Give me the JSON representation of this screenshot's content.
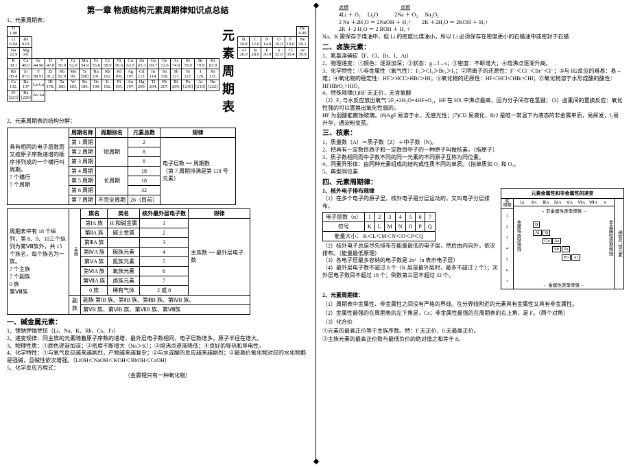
{
  "left": {
    "chapter_title": "第一章  物质结构元素周期律知识点总结",
    "s1": "1、元素周期表：",
    "pt_title": "元素周期表",
    "pt_left": {
      "r1": [
        [
          "H",
          "1.00"
        ]
      ],
      "r2": [
        [
          "Li",
          "6.94"
        ],
        [
          "Be",
          "9.01"
        ]
      ],
      "r3": [
        [
          "Na",
          "22.9"
        ],
        [
          "Mg",
          "24."
        ]
      ],
      "r4": [
        [
          "K",
          "39.1"
        ],
        [
          "Ca",
          "40.0"
        ],
        [
          "Sc",
          "44.96"
        ],
        [
          "Ti",
          "47.8"
        ],
        [
          "V",
          "50.9"
        ],
        [
          "Cr",
          "52.0"
        ],
        [
          "Mn",
          "54.9"
        ],
        [
          "Fe",
          "55.8"
        ],
        [
          "Co",
          "58.9"
        ],
        [
          "Ni",
          "58.6"
        ],
        [
          "Cu",
          "63.5"
        ],
        [
          "Zn",
          "65.3"
        ],
        [
          "Ga",
          "69.7"
        ],
        [
          "Ge",
          "72.6"
        ],
        [
          "As",
          "74.9"
        ],
        [
          "Se",
          "78.9"
        ],
        [
          "Br",
          "79.9"
        ],
        [
          "Kr",
          "83.8"
        ]
      ],
      "r5": [
        [
          "Rb",
          "85.4"
        ],
        [
          "Sr",
          "87.6"
        ],
        [
          "Y",
          "88.91"
        ],
        [
          "Zr",
          "91.2"
        ],
        [
          "Nb",
          "92.9"
        ],
        [
          "Mo",
          "95."
        ],
        [
          "Tc",
          "[98]"
        ],
        [
          "Ru",
          "101."
        ],
        [
          "Rh",
          "102."
        ],
        [
          "Pd",
          "106."
        ],
        [
          "Ag",
          "107."
        ],
        [
          "Cd",
          "112."
        ],
        [
          "In",
          "114."
        ],
        [
          "Sn",
          "118."
        ],
        [
          "Sb",
          "121."
        ],
        [
          "Te",
          "127."
        ],
        [
          "I",
          "126."
        ],
        [
          "Xe",
          "131."
        ]
      ],
      "r6": [
        [
          "Cs",
          "132."
        ],
        [
          "Ba",
          "137"
        ],
        [
          "La-Lu",
          ""
        ],
        [
          "Hf",
          "178."
        ],
        [
          "Ta",
          "180."
        ],
        [
          "W",
          "183."
        ],
        [
          "Re",
          "186."
        ],
        [
          "Os",
          "190."
        ],
        [
          "Ir",
          "192."
        ],
        [
          "Pt",
          "195."
        ],
        [
          "Au",
          "197."
        ],
        [
          "Hg",
          "200."
        ],
        [
          "Tl",
          "204."
        ],
        [
          "Pb",
          "207."
        ],
        [
          "Bi",
          "209."
        ],
        [
          "Po",
          "[210]"
        ],
        [
          "At",
          "[210]"
        ],
        [
          "Rn",
          "[222]"
        ]
      ],
      "r7": [
        [
          "Fr",
          "[223]"
        ],
        [
          "Ra",
          "[226]"
        ],
        [
          "Ac-La",
          ""
        ]
      ]
    },
    "pt_right": {
      "r1": [
        [
          "He",
          "4.00"
        ]
      ],
      "r2": [
        [
          "B",
          "10.8"
        ],
        [
          "C",
          "12.0"
        ],
        [
          "N",
          "14.0"
        ],
        [
          "O",
          "16.0"
        ],
        [
          "F",
          "19.0"
        ],
        [
          "Ne",
          "20.1"
        ]
      ],
      "r3": [
        [
          "Al",
          "26.9"
        ],
        [
          "Si",
          "28.0"
        ],
        [
          "P",
          "30.9"
        ],
        [
          "S",
          "32.0"
        ],
        [
          "Cl",
          "35.4"
        ],
        [
          "Ar",
          "39.9"
        ]
      ]
    },
    "s2": "2、元素周期表的结构分解：",
    "t1": {
      "head": [
        "周期名称",
        "周期别名",
        "元素总数",
        "规律"
      ],
      "left_desc": "具有相同的电子层数而又按原子序数递增的顺序排列成的一个横行叫周期。\n7 个横行\n7 个周期",
      "rows": [
        [
          "第 1 周期",
          "短周期",
          "2",
          "电子层数 == 周期数\n（第 7 周期排满是第 118 号元素）"
        ],
        [
          "第 2 周期",
          "",
          "8",
          ""
        ],
        [
          "第 3 周期",
          "",
          "8",
          ""
        ],
        [
          "第 4 周期",
          "长周期",
          "18",
          ""
        ],
        [
          "第 5 周期",
          "",
          "18",
          ""
        ],
        [
          "第 6 周期",
          "",
          "32",
          ""
        ],
        [
          "第 7 周期",
          "不完全周期",
          "26（目前）",
          ""
        ]
      ]
    },
    "t2": {
      "head": [
        "族名",
        "类名",
        "核外最外层电子数",
        "规律"
      ],
      "left_desc": "周期表中有 18 个纵列，第 8、9、10三个纵列为第Ⅷ族外，共 15 个族名，每个族名为一族。\n7 个主族\n7 个副族\n0 族\n第Ⅷ族",
      "rows": [
        [
          "第ⅠA 族",
          "H 和碱金属",
          "1",
          "主族数 == 最外层电子数"
        ],
        [
          "第ⅡA 族",
          "碱土金属",
          "2",
          ""
        ],
        [
          "第ⅢA 族",
          "",
          "3",
          ""
        ],
        [
          "第ⅣA 族",
          "碳族元素",
          "4",
          ""
        ],
        [
          "第ⅤA 族",
          "氮族元素",
          "5",
          ""
        ],
        [
          "第ⅥA 族",
          "氧族元素",
          "6",
          ""
        ],
        [
          "第ⅦA 族",
          "卤族元素",
          "7",
          ""
        ],
        [
          "0 族",
          "稀有气体",
          "2 或 8",
          ""
        ]
      ],
      "side_label": "主族",
      "foot1": "副族   第ⅠB 族、第ⅡB 族、第ⅢB 族、第ⅣB 族、",
      "foot2": "       第ⅤB 族、第ⅥB 族、第ⅦB 族、第Ⅷ族"
    },
    "alk_h": "一、碱金属元素：",
    "alk": [
      "1、锂钠钾铷铯钫（Li、Na、K、Rb、Cs、Fr）",
      "2、递变规律：同主族的元素随着原子序数的递增，最外层电子数相同，电子层数增多，原子半径在增大。",
      "3、物理性质：①颜色逐渐加深；②密度不断增大（Na＞K）；③熔沸点逐渐降低；④良好的导热和导电性。",
      "4、化学特性：①与氧气反应越来越剧烈，产物越来越复杂；②与水或酸的反应越来越剧烈；③最高价氧化物对应的水化物都是强碱，且碱性依次增强。（LiOH＜NaOH＜KOH＜RbOH＜CsOH）",
      "5、化学反应方程式：",
      "（金属锂只有一种氧化物）"
    ]
  },
  "right": {
    "eqs": [
      {
        "pre": "点燃",
        "a": "4Li ＋ O₂",
        "b": "Li₂O",
        "pre2": "点燃",
        "c": "2Na ＋ O₂",
        "d": "Na₂O₂"
      },
      {
        "a": "2 Na  ＋2H₂O  ＝  2NaOH ＋ H₂↑",
        "c": "2K  ＋2H₂O  ＝  2KOH ＋ H₂↑"
      },
      {
        "a": "2R ＋ 2 H₂O  ＝ 2 ROH ＋ H₂ ↑"
      }
    ],
    "note1": "Na、K 需保存于煤油中，但 Li 的密度比煤油小，所以 Li 必须保存在密度更小的石蜡油中或密封于石蜡",
    "hal_h": "二、卤族元素：",
    "hal": [
      "1、氟氯溴碘砹（F、Cl、Br、I、At）",
      "2、物理递变：①颜色：逐渐加深；②状态：g→l→s；③密度：不断增大；④熔沸点逐渐升高。",
      "3、化学特性：①非金属性（氧气性）：F₂＞Cl₂＞Br₂＞I₂；②阴离子的还原性：F⁻＜Cl⁻＜Br⁻＜I⁻；③与 H2反应的难易：易→难；④氧化物的稳定性：HF＞HCl＞HBr＞HI；⑤氧化物的还原性：HF＜HCl＜HBr＜HI；⑥氧化物溶于水形成酸的酸性：HF<HCl<HBr<HI，最高价氧化物对应水化物的酸性：HClO₄>HBrO₄>HIO₄",
      "4、特殊规律(1)HF 无正价，无含氧酸",
      "（2）F₂ 与水反应放出氧气¨2F₂+2H₂O=4HF+O₂，HF 在 HX 中沸点最高，因为分子间存在氢键；（3）卤素间的置换反应：氧化性强的可以置换出氧化性弱的。",
      "HF 为弱酸能腐蚀玻璃。(6)AgF 易溶于水，无感光性；(7)Cl2 易液化，Br2 是唯一常温下为液态的非金属单质，易挥发，I₂易升华，遇淀粉变蓝。"
    ],
    "nuc_h": "三、核素：",
    "nuc": [
      "1、质量数（A）＝质子数（Z）＋中子数（N)。",
      "2、把具有一定数目质子和一定数目中子的一种原子叫做核素。（指原子）",
      "3、质子数相同而中子数不同的同一元素的不同原子互称为同位素。",
      "4、同素异形体：由同种元素组成的结构或性质不同的单质。（指单质如 O₂ 和 O₃。",
      "5、典型同位素"
    ],
    "per_h": "四、元素周期律：",
    "per_s1": "1、核外电子排布规律",
    "per_p1": "（1）在多个电子的原子里，核外电子是分层运动的，又叫电子分层排布。",
    "shell": {
      "r1": [
        "电子层数（n）",
        "1",
        "2",
        "3",
        "4",
        "5",
        "6",
        "7"
      ],
      "r2": [
        "符号",
        "K",
        "L",
        "M",
        "N",
        "O",
        "P",
        "Q"
      ],
      "r3": "能量大小：   K＜L＜M＜N＜O＜P＜Q"
    },
    "per": [
      "（2）核外电子总是尽先排布在能量最低的电子层，然后由内向外，依次排布。（能量最低原理）",
      "（3）各电子层最多容纳的电子数是 2n²（n 表示电子层）",
      "（4）最外层电子数不超过 8 个（K 层是最外层时，最多不超过 2 个）；次外层电子数目不超过 18 个；倒数第三层不超过 32 个。"
    ],
    "per_s2": "2、元素周期律：",
    "per2": [
      "（1）周期表中金属性、非金属性之间没有严格的界线。在分界线附近的元素具有金属性又具有非金属性。",
      "（2）金属性最强的在周期表的左下角是，Cs；非金属性最强的在周期表的右上角，是 F。（两个对角）",
      "（3）化合价",
      "①元素的最高正价等于主族序数。特：F 无正价，0 无最高正价。",
      "②主族元素的最高正价数与最低负价的绝对值之和等于 8。"
    ],
    "trend": {
      "title": "元素金属性和非金属性的递变",
      "groups": [
        "ⅠA",
        "ⅡA",
        "ⅢA",
        "ⅣA",
        "ⅤA",
        "ⅥA",
        "ⅦA",
        "0"
      ],
      "periods": [
        "1",
        "2",
        "3",
        "4",
        "5",
        "6",
        "7"
      ],
      "top_arrow": "非金属性逐渐增强",
      "bottom_arrow": "金属性逐渐增强",
      "left_arrow": "金属性逐渐增强",
      "right_arrow": "非金属性逐渐增强",
      "right_label": "稀有气体元素",
      "stairs": [
        "B",
        "Al",
        "Si",
        "Ge",
        "As",
        "Sb",
        "Te",
        "Po",
        "At"
      ]
    }
  }
}
